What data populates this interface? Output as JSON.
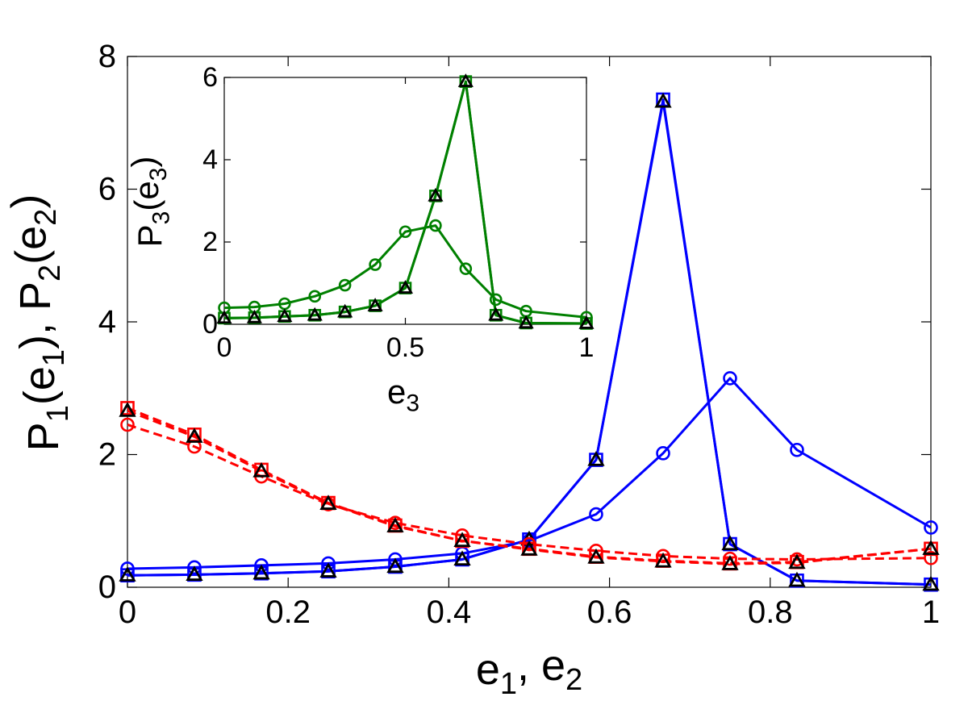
{
  "chart_data": [
    {
      "type": "line",
      "xlabel": {
        "parts": [
          [
            "e",
            ""
          ],
          [
            "1",
            "sub"
          ],
          [
            ", e",
            ""
          ],
          [
            "2",
            "sub"
          ]
        ]
      },
      "ylabel": {
        "parts": [
          [
            "P",
            ""
          ],
          [
            "1",
            "sub"
          ],
          [
            "(e",
            ""
          ],
          [
            "1",
            "sub"
          ],
          "), P",
          [
            "2",
            "sub"
          ],
          [
            "(e",
            ""
          ],
          [
            "2",
            "sub"
          ],
          [
            ")",
            ""
          ]
        ]
      },
      "xlim": [
        0,
        1
      ],
      "ylim": [
        0,
        8
      ],
      "xticks": [
        "0",
        "0.2",
        "0.4",
        "0.6",
        "0.8",
        "1"
      ],
      "xtick_values": [
        0,
        0.2,
        0.4,
        0.6,
        0.8,
        1
      ],
      "yticks": [
        "0",
        "2",
        "4",
        "6",
        "8"
      ],
      "ytick_values": [
        0,
        2,
        4,
        6,
        8
      ],
      "grid": false,
      "series": [
        {
          "color": "#0000ff",
          "dash": false,
          "marker": "circle",
          "x": [
            0,
            0.0833,
            0.1667,
            0.25,
            0.3333,
            0.4167,
            0.5,
            0.5833,
            0.6667,
            0.75,
            0.8333,
            1.0
          ],
          "y": [
            0.28,
            0.3,
            0.33,
            0.36,
            0.42,
            0.51,
            0.7,
            1.1,
            2.02,
            3.15,
            2.07,
            0.9
          ]
        },
        {
          "color": "#0000ff",
          "dash": false,
          "marker": "square",
          "x": [
            0,
            0.0833,
            0.1667,
            0.25,
            0.3333,
            0.4167,
            0.5,
            0.5833,
            0.6667,
            0.75,
            0.8333,
            1.0
          ],
          "y": [
            0.18,
            0.19,
            0.21,
            0.24,
            0.31,
            0.42,
            0.72,
            1.92,
            7.35,
            0.65,
            0.1,
            0.04
          ]
        },
        {
          "color": "#0000ff",
          "dash": false,
          "marker": "triangle",
          "x": [
            0,
            0.0833,
            0.1667,
            0.25,
            0.3333,
            0.4167,
            0.5,
            0.5833,
            0.6667,
            0.75,
            0.8333,
            1.0
          ],
          "y": [
            0.18,
            0.19,
            0.21,
            0.24,
            0.31,
            0.42,
            0.72,
            1.92,
            7.32,
            0.65,
            0.1,
            0.04
          ]
        },
        {
          "color": "#ff0000",
          "dash": true,
          "marker": "circle",
          "x": [
            0,
            0.0833,
            0.1667,
            0.25,
            0.3333,
            0.4167,
            0.5,
            0.5833,
            0.6667,
            0.75,
            0.8333,
            1.0
          ],
          "y": [
            2.45,
            2.12,
            1.67,
            1.25,
            0.97,
            0.78,
            0.65,
            0.55,
            0.47,
            0.43,
            0.42,
            0.44
          ]
        },
        {
          "color": "#ff0000",
          "dash": true,
          "marker": "square",
          "x": [
            0,
            0.0833,
            0.1667,
            0.25,
            0.3333,
            0.4167,
            0.5,
            0.5833,
            0.6667,
            0.75,
            0.8333,
            1.0
          ],
          "y": [
            2.7,
            2.3,
            1.77,
            1.27,
            0.93,
            0.7,
            0.58,
            0.46,
            0.4,
            0.36,
            0.38,
            0.58
          ]
        },
        {
          "color": "#ff0000",
          "dash": true,
          "marker": "triangle",
          "x": [
            0,
            0.0833,
            0.1667,
            0.25,
            0.3333,
            0.4167,
            0.5,
            0.5833,
            0.6667,
            0.75,
            0.8333,
            1.0
          ],
          "y": [
            2.66,
            2.27,
            1.75,
            1.26,
            0.92,
            0.7,
            0.57,
            0.45,
            0.39,
            0.35,
            0.37,
            0.58
          ]
        }
      ]
    },
    {
      "type": "line",
      "xlabel": {
        "parts": [
          [
            "e",
            ""
          ],
          [
            "3",
            "sub"
          ]
        ]
      },
      "ylabel": {
        "parts": [
          [
            "P",
            ""
          ],
          [
            "3",
            "sub"
          ],
          [
            "(e",
            ""
          ],
          [
            "3",
            "sub"
          ],
          [
            ")",
            ""
          ]
        ]
      },
      "xlim": [
        0,
        1
      ],
      "ylim": [
        0,
        6
      ],
      "xticks": [
        "0",
        "0.5",
        "1"
      ],
      "xtick_values": [
        0,
        0.5,
        1
      ],
      "yticks": [
        "0",
        "2",
        "4",
        "6"
      ],
      "ytick_values": [
        0,
        2,
        4,
        6
      ],
      "grid": false,
      "series": [
        {
          "color": "#008000",
          "dash": false,
          "marker": "circle",
          "x": [
            0,
            0.0833,
            0.1667,
            0.25,
            0.3333,
            0.4167,
            0.5,
            0.5833,
            0.6667,
            0.75,
            0.8333,
            1.0
          ],
          "y": [
            0.4,
            0.42,
            0.5,
            0.68,
            0.95,
            1.45,
            2.25,
            2.4,
            1.35,
            0.6,
            0.32,
            0.17
          ]
        },
        {
          "color": "#008000",
          "dash": false,
          "marker": "square",
          "x": [
            0,
            0.0833,
            0.1667,
            0.25,
            0.3333,
            0.4167,
            0.5,
            0.5833,
            0.6667,
            0.75,
            0.8333,
            1.0
          ],
          "y": [
            0.15,
            0.16,
            0.19,
            0.22,
            0.3,
            0.45,
            0.88,
            3.12,
            5.9,
            0.22,
            0.03,
            0.02
          ]
        },
        {
          "color": "#008000",
          "dash": false,
          "marker": "triangle",
          "x": [
            0,
            0.0833,
            0.1667,
            0.25,
            0.3333,
            0.4167,
            0.5,
            0.5833,
            0.6667,
            0.75,
            0.8333,
            1.0
          ],
          "y": [
            0.15,
            0.16,
            0.19,
            0.22,
            0.3,
            0.45,
            0.88,
            3.12,
            5.9,
            0.22,
            0.03,
            0.02
          ]
        }
      ]
    }
  ]
}
